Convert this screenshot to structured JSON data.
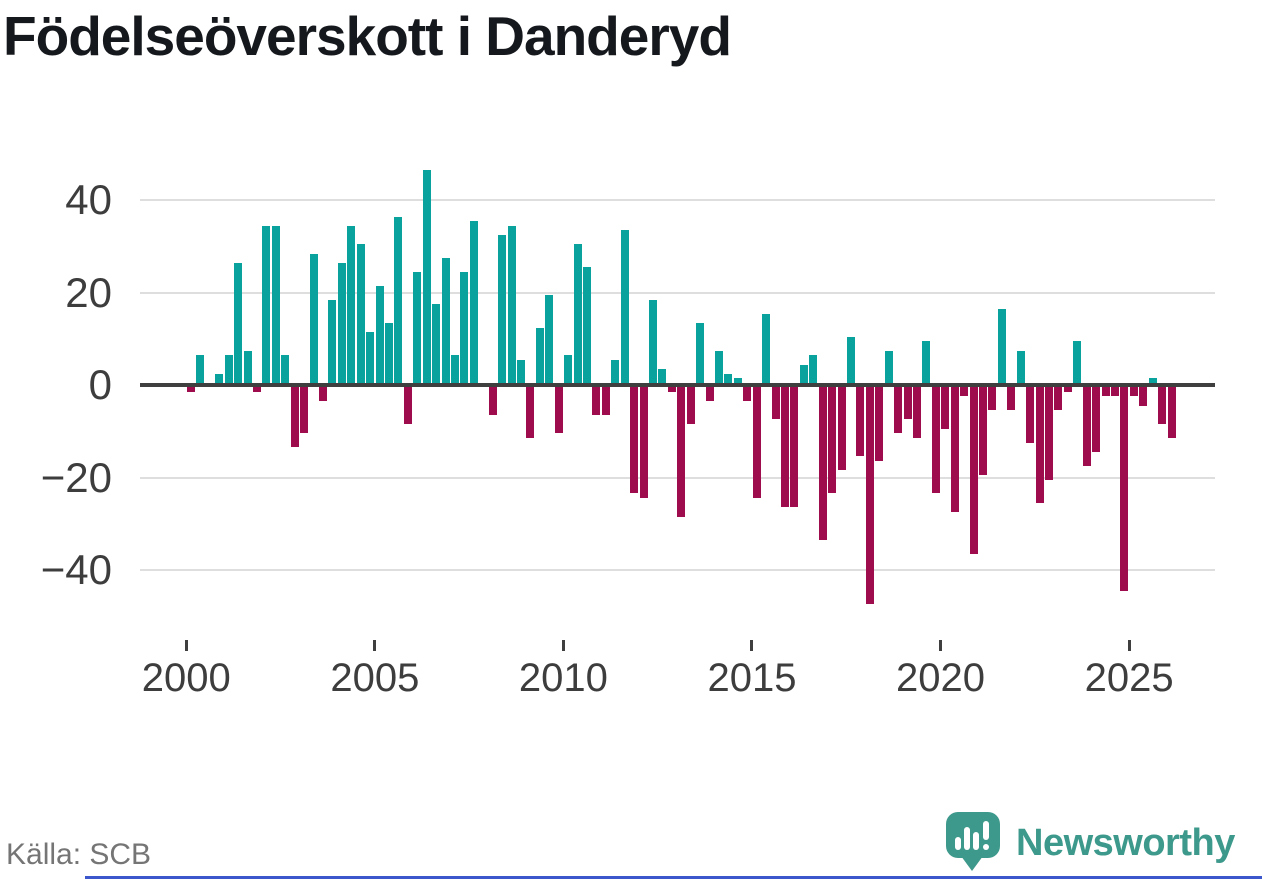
{
  "title": "Födelseöverskott i Danderyd",
  "source": "Källa: SCB",
  "branding": {
    "logo_text": "Newsworthy"
  },
  "colors": {
    "positive_bar": "#0aa29d",
    "negative_bar": "#9e0c4e",
    "zero_line": "#3f3f3f",
    "gridline": "#dedede",
    "axis_text": "#3d3d3d",
    "title_text": "#15181c",
    "source_text": "#757575",
    "logo_teal": "#3d998b",
    "footer_strip_blue": "#3c56cc"
  },
  "chart_data": {
    "type": "bar",
    "title": "Födelseöverskott i Danderyd",
    "xlabel": "",
    "ylabel": "",
    "frequency": "quarterly",
    "start_year": 2000,
    "start_quarter": 1,
    "grid": "horizontal",
    "legend": "none",
    "ylim": [
      -50,
      48
    ],
    "y_ticks": [
      [
        40,
        "40"
      ],
      [
        20,
        "20"
      ],
      [
        0,
        "0"
      ],
      [
        -20,
        "−20"
      ],
      [
        -40,
        "−40"
      ]
    ],
    "x_tick_labels": [
      "2000",
      "2005",
      "2010",
      "2015",
      "2020",
      "2025"
    ],
    "x_tick_years": [
      2000,
      2005,
      2010,
      2015,
      2020,
      2025
    ],
    "values": [
      -1,
      6,
      0,
      2,
      6,
      26,
      7,
      -1,
      34,
      34,
      6,
      -13,
      -10,
      28,
      -3,
      18,
      26,
      34,
      30,
      11,
      21,
      13,
      36,
      -8,
      24,
      46,
      17,
      27,
      6,
      24,
      35,
      0,
      -6,
      32,
      34,
      5,
      -11,
      12,
      19,
      -10,
      6,
      30,
      25,
      -6,
      -6,
      5,
      33,
      -23,
      -24,
      18,
      3,
      -1,
      -28,
      -8,
      13,
      -3,
      7,
      2,
      1,
      -3,
      -24,
      15,
      -7,
      -26,
      -26,
      4,
      6,
      -33,
      -23,
      -18,
      10,
      -15,
      -47,
      -16,
      7,
      -10,
      -7,
      -11,
      9,
      -23,
      -9,
      -27,
      -2,
      -36,
      -19,
      -5,
      16,
      -5,
      7,
      -12,
      -25,
      -20,
      -5,
      -1,
      9,
      -17,
      -14,
      -2,
      -2,
      -44,
      -2,
      -4,
      1,
      -8,
      -11
    ]
  }
}
